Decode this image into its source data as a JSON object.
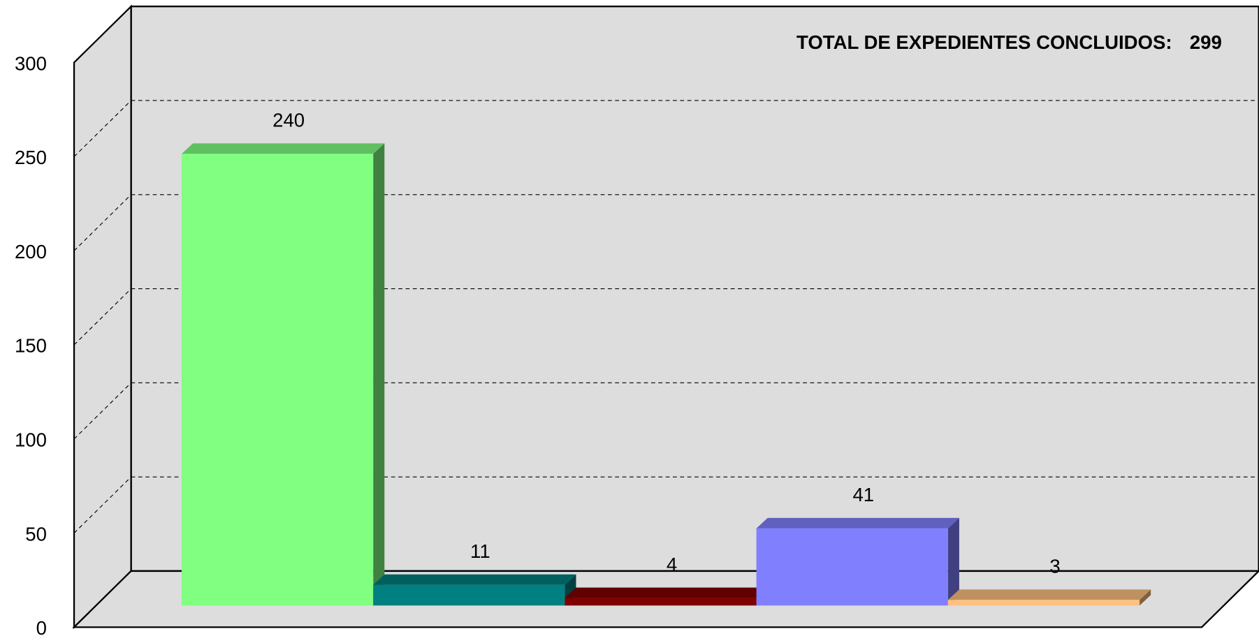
{
  "chart_data": {
    "type": "bar3d",
    "annotation": "TOTAL DE EXPEDIENTES CONCLUIDOS:",
    "total": 299,
    "values": [
      240,
      11,
      4,
      41,
      3
    ],
    "colors": [
      "#80ff80",
      "#008080",
      "#800000",
      "#8080ff",
      "#ffc080"
    ],
    "ylim": [
      0,
      300
    ],
    "yticks": [
      0,
      50,
      100,
      150,
      200,
      250,
      300
    ],
    "grid": true
  }
}
